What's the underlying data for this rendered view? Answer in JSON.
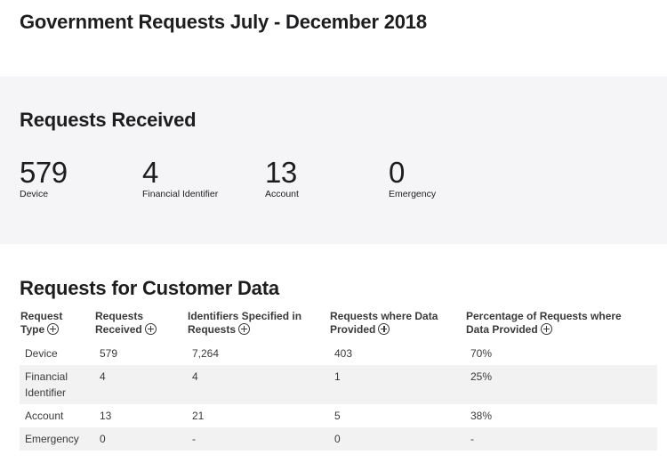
{
  "page": {
    "title": "Government Requests July - December 2018"
  },
  "summary": {
    "title": "Requests Received",
    "stats": [
      {
        "value": "579",
        "label": "Device"
      },
      {
        "value": "4",
        "label": "Financial Identifier"
      },
      {
        "value": "13",
        "label": "Account"
      },
      {
        "value": "0",
        "label": "Emergency"
      }
    ]
  },
  "table": {
    "title": "Requests for Customer Data",
    "headers": [
      {
        "line1": "Request",
        "line2": "Type"
      },
      {
        "line1": "Requests",
        "line2": "Received"
      },
      {
        "line1": "Identifiers Specified in",
        "line2": "Requests"
      },
      {
        "line1": "Requests where Data",
        "line2": "Provided"
      },
      {
        "line1": "Percentage of Requests where",
        "line2": "Data Provided"
      }
    ],
    "rows": [
      {
        "type": "Device",
        "received": "579",
        "identifiers": "7,264",
        "provided": "403",
        "percentage": "70%"
      },
      {
        "type": "Financial Identifier",
        "received": "4",
        "identifiers": "4",
        "provided": "1",
        "percentage": "25%"
      },
      {
        "type": "Account",
        "received": "13",
        "identifiers": "21",
        "provided": "5",
        "percentage": "38%"
      },
      {
        "type": "Emergency",
        "received": "0",
        "identifiers": "-",
        "provided": "0",
        "percentage": "-"
      }
    ]
  }
}
